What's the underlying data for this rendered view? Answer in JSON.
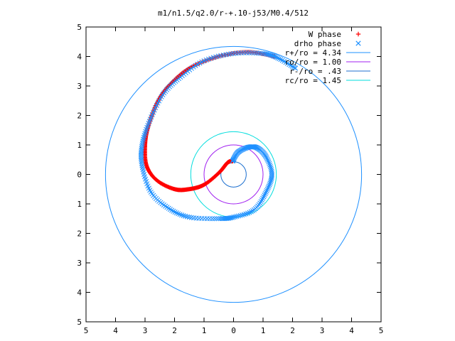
{
  "chart_data": {
    "type": "scatter",
    "title": "m1/n1.5/q2.0/r-+.10-j53/M0.4/512",
    "xlabel": "",
    "ylabel": "",
    "xlim": [
      -5,
      5
    ],
    "ylim": [
      -5,
      5
    ],
    "x_ticks": [
      -5,
      -4,
      -3,
      -2,
      -1,
      0,
      1,
      2,
      3,
      4,
      5
    ],
    "y_ticks": [
      -5,
      -4,
      -3,
      -2,
      -1,
      0,
      1,
      2,
      3,
      4,
      5
    ],
    "x_tick_labels": [
      "5",
      "4",
      "3",
      "2",
      "1",
      "0",
      "1",
      "2",
      "3",
      "4",
      "5"
    ],
    "y_tick_labels": [
      "5",
      "4",
      "3",
      "2",
      "1",
      "0",
      "1",
      "2",
      "3",
      "4",
      "5"
    ],
    "grid": false,
    "legend_position": "top-right",
    "series": [
      {
        "name": "W phase",
        "kind": "points",
        "marker": "plus",
        "color": "#ff0000",
        "spiral": {
          "phi_start": 0.18,
          "phi_end": 10.0,
          "steps": 260
        },
        "points": [
          [
            -0.03,
            0.45
          ],
          [
            -0.2,
            0.4
          ],
          [
            -0.5,
            0.05
          ],
          [
            -1.0,
            -0.35
          ],
          [
            -1.5,
            -0.5
          ],
          [
            -2.0,
            -0.5
          ],
          [
            -2.6,
            -0.2
          ],
          [
            -2.95,
            0.3
          ],
          [
            -3.0,
            1.0
          ],
          [
            -2.9,
            1.6
          ],
          [
            -2.6,
            2.4
          ],
          [
            -2.2,
            3.0
          ],
          [
            -1.5,
            3.6
          ],
          [
            -0.5,
            4.0
          ],
          [
            0.5,
            4.15
          ],
          [
            1.4,
            4.0
          ]
        ]
      },
      {
        "name": "drho phase",
        "kind": "points",
        "marker": "cross",
        "color": "#1e90ff",
        "points": [
          [
            -0.03,
            0.45
          ],
          [
            0.15,
            0.75
          ],
          [
            0.5,
            0.92
          ],
          [
            0.8,
            0.9
          ],
          [
            1.1,
            0.6
          ],
          [
            1.3,
            0.0
          ],
          [
            1.1,
            -0.6
          ],
          [
            0.7,
            -1.2
          ],
          [
            0.0,
            -1.45
          ],
          [
            -0.5,
            -1.5
          ],
          [
            -1.5,
            -1.45
          ],
          [
            -2.2,
            -1.15
          ],
          [
            -2.8,
            -0.6
          ],
          [
            -3.1,
            0.3
          ],
          [
            -3.1,
            1.0
          ],
          [
            -2.85,
            1.8
          ],
          [
            -2.4,
            2.7
          ],
          [
            -1.8,
            3.3
          ],
          [
            -1.0,
            3.85
          ],
          [
            0.0,
            4.1
          ],
          [
            1.0,
            4.1
          ],
          [
            1.5,
            3.95
          ],
          [
            2.1,
            3.6
          ]
        ]
      },
      {
        "name": "r+/ro = 4.34",
        "kind": "circle",
        "radius": 4.34,
        "color": "#1e90ff"
      },
      {
        "name": "ro/ro = 1.00",
        "kind": "circle",
        "radius": 1.0,
        "color": "#a020f0"
      },
      {
        "name": "r-/ro = .43",
        "kind": "circle",
        "radius": 0.43,
        "color": "#1c6fcf"
      },
      {
        "name": "rc/ro = 1.45",
        "kind": "circle",
        "radius": 1.45,
        "color": "#00dddd"
      }
    ]
  }
}
